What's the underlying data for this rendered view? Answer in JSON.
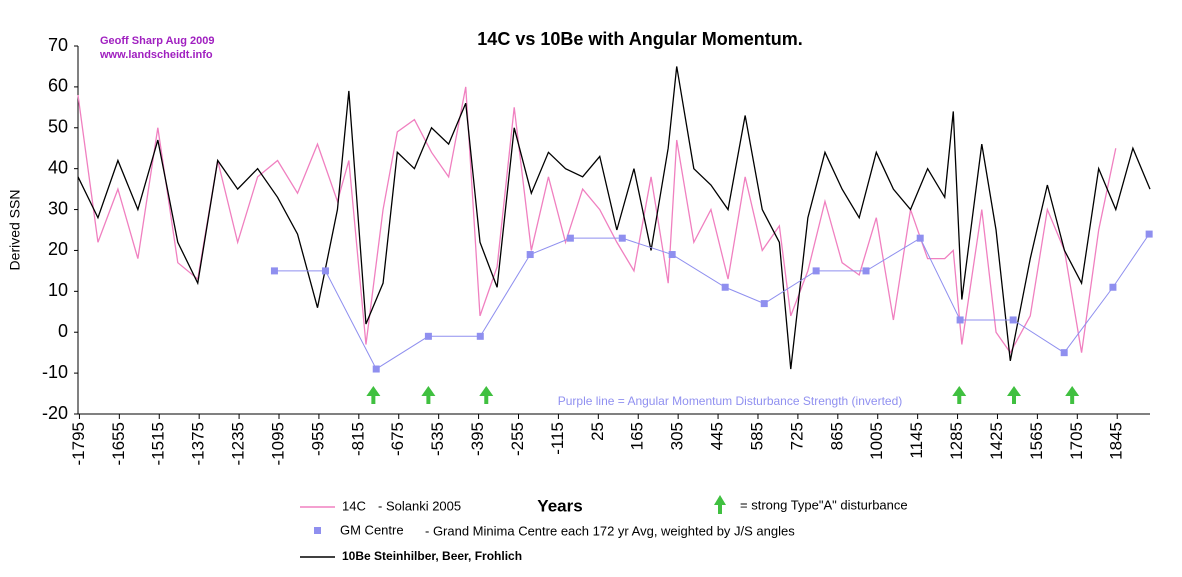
{
  "chart_data": {
    "type": "line",
    "title": "14C vs 10Be with Angular Momentum.",
    "author": "Geoff Sharp Aug 2009",
    "website": "www.landscheidt.info",
    "xlabel": "Years",
    "ylabel": "Derived SSN",
    "annotation": "Purple line = Angular Momentum Disturbance Strength (inverted)",
    "arrow_legend": "= strong Type\"A\" disturbance",
    "disturbance_x": [
      -764,
      -571,
      -368,
      1291,
      1483,
      1687
    ],
    "xlim": [
      -1800,
      1960
    ],
    "ylim": [
      -20,
      70
    ],
    "yticks": [
      -20,
      -10,
      0,
      10,
      20,
      30,
      40,
      50,
      60,
      70
    ],
    "xticks": [
      -1795,
      -1655,
      -1515,
      -1375,
      -1235,
      -1095,
      -955,
      -815,
      -675,
      -535,
      -395,
      -255,
      -115,
      25,
      165,
      305,
      445,
      585,
      725,
      865,
      1005,
      1145,
      1285,
      1425,
      1565,
      1705,
      1845
    ],
    "grid": false,
    "x": [
      -1800,
      -1730,
      -1660,
      -1590,
      -1520,
      -1450,
      -1380,
      -1310,
      -1240,
      -1170,
      -1100,
      -1030,
      -960,
      -890,
      -850,
      -790,
      -730,
      -680,
      -620,
      -560,
      -500,
      -440,
      -390,
      -330,
      -270,
      -210,
      -150,
      -90,
      -30,
      30,
      90,
      150,
      210,
      270,
      300,
      360,
      420,
      480,
      540,
      600,
      660,
      700,
      760,
      820,
      880,
      940,
      1000,
      1060,
      1120,
      1180,
      1240,
      1270,
      1300,
      1370,
      1420,
      1470,
      1540,
      1600,
      1660,
      1720,
      1780,
      1840,
      1900,
      1960
    ],
    "series": [
      {
        "name": "14C",
        "description": "- Solanki 2005",
        "color": "#f080c0",
        "values": [
          58,
          22,
          35,
          18,
          50,
          17,
          13,
          42,
          22,
          38,
          42,
          34,
          46,
          32,
          42,
          -3,
          30,
          49,
          52,
          44,
          38,
          60,
          4,
          16,
          55,
          20,
          38,
          22,
          35,
          30,
          22,
          15,
          38,
          12,
          47,
          22,
          30,
          13,
          38,
          20,
          26,
          4,
          15,
          32,
          17,
          14,
          28,
          3,
          30,
          18,
          18,
          20,
          -3,
          30,
          0,
          -5,
          4,
          30,
          20,
          -5,
          25,
          45,
          null,
          null
        ]
      },
      {
        "name": "10Be Steinhilber, Beer, Frohlich",
        "color": "#000000",
        "values": [
          38,
          28,
          42,
          30,
          47,
          22,
          12,
          42,
          35,
          40,
          33,
          24,
          6,
          30,
          59,
          2,
          12,
          44,
          40,
          50,
          46,
          56,
          22,
          11,
          50,
          34,
          44,
          40,
          38,
          43,
          25,
          40,
          20,
          45,
          65,
          40,
          36,
          30,
          53,
          30,
          22,
          -9,
          28,
          44,
          35,
          28,
          44,
          35,
          30,
          40,
          33,
          54,
          8,
          46,
          25,
          -7,
          18,
          36,
          20,
          12,
          40,
          30,
          45,
          35
        ]
      },
      {
        "name": "GM Centre",
        "description": "- Grand Minima Centre each 172 yr Avg, weighted by  J/S angles",
        "color": "#8f8fef",
        "x": [
          -1111,
          -932,
          -754,
          -571,
          -389,
          -214,
          -73,
          109,
          284,
          470,
          607,
          789,
          964,
          1154,
          1294,
          1480,
          1659,
          1830,
          1957
        ],
        "values": [
          15,
          15,
          -9,
          -1,
          -1,
          19,
          23,
          23,
          19,
          11,
          7,
          15,
          15,
          23,
          3,
          3,
          -5,
          11,
          24
        ]
      }
    ]
  }
}
